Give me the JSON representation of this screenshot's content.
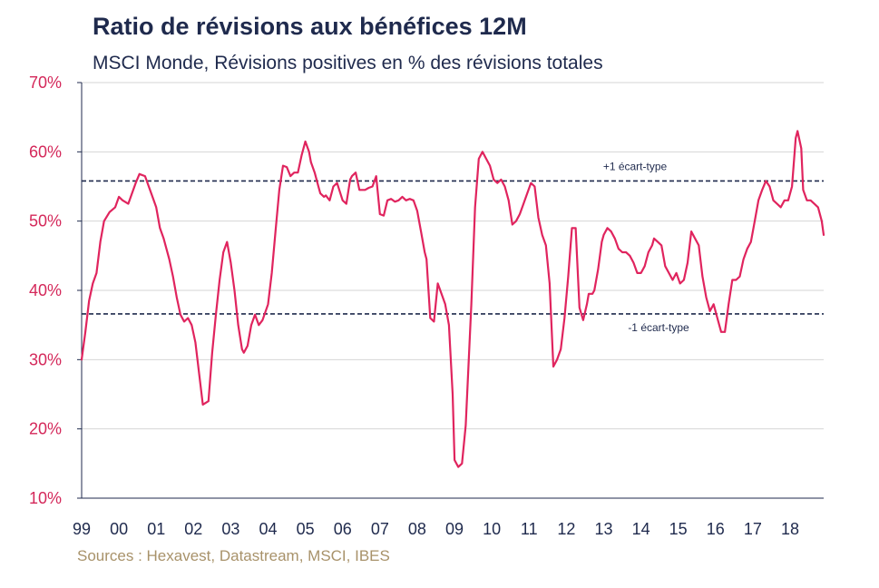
{
  "chart_data": {
    "type": "line",
    "title": "Ratio de révisions aux bénéfices 12M",
    "subtitle": "MSCI Monde, Révisions positives en % des révisions totales",
    "source": "Sources : Hexavest, Datastream, MSCI, IBES",
    "x_tick_labels": [
      "99",
      "00",
      "01",
      "02",
      "03",
      "04",
      "05",
      "06",
      "07",
      "08",
      "09",
      "10",
      "11",
      "12",
      "13",
      "14",
      "15",
      "16",
      "17",
      "18"
    ],
    "x_tick_years": [
      1999,
      2000,
      2001,
      2002,
      2003,
      2004,
      2005,
      2006,
      2007,
      2008,
      2009,
      2010,
      2011,
      2012,
      2013,
      2014,
      2015,
      2016,
      2017,
      2018
    ],
    "y_tick_labels": [
      "10%",
      "20%",
      "30%",
      "40%",
      "50%",
      "60%",
      "70%"
    ],
    "y_tick_values": [
      10,
      20,
      30,
      40,
      50,
      60,
      70
    ],
    "ylim": [
      10,
      70
    ],
    "xlim": [
      1999.0,
      2018.9
    ],
    "grid": "horizontal",
    "reference_lines": [
      {
        "label": "+1 écart-type",
        "value": 55.8,
        "style": "dashed"
      },
      {
        "label": "-1 écart-type",
        "value": 36.6,
        "style": "dashed"
      }
    ],
    "series": [
      {
        "color": "#e0245e",
        "x": [
          1999.0,
          1999.1,
          1999.2,
          1999.3,
          1999.4,
          1999.5,
          1999.6,
          1999.75,
          1999.9,
          2000.0,
          2000.1,
          2000.25,
          2000.35,
          2000.45,
          2000.55,
          2000.7,
          2000.8,
          2000.9,
          2001.0,
          2001.1,
          2001.2,
          2001.35,
          2001.45,
          2001.55,
          2001.65,
          2001.75,
          2001.85,
          2001.95,
          2002.05,
          2002.15,
          2002.25,
          2002.4,
          2002.5,
          2002.6,
          2002.7,
          2002.8,
          2002.9,
          2003.0,
          2003.1,
          2003.2,
          2003.3,
          2003.35,
          2003.45,
          2003.55,
          2003.65,
          2003.75,
          2003.85,
          2004.0,
          2004.1,
          2004.2,
          2004.3,
          2004.4,
          2004.5,
          2004.6,
          2004.7,
          2004.8,
          2004.9,
          2005.0,
          2005.1,
          2005.15,
          2005.25,
          2005.35,
          2005.4,
          2005.5,
          2005.55,
          2005.65,
          2005.75,
          2005.85,
          2006.0,
          2006.1,
          2006.2,
          2006.25,
          2006.35,
          2006.45,
          2006.55,
          2006.6,
          2006.7,
          2006.8,
          2006.9,
          2007.0,
          2007.1,
          2007.2,
          2007.3,
          2007.4,
          2007.5,
          2007.6,
          2007.7,
          2007.8,
          2007.9,
          2008.0,
          2008.1,
          2008.2,
          2008.25,
          2008.35,
          2008.45,
          2008.55,
          2008.65,
          2008.75,
          2008.85,
          2008.95,
          2009.0,
          2009.1,
          2009.2,
          2009.3,
          2009.45,
          2009.55,
          2009.65,
          2009.75,
          2009.85,
          2009.95,
          2010.05,
          2010.15,
          2010.25,
          2010.35,
          2010.45,
          2010.55,
          2010.65,
          2010.75,
          2010.85,
          2010.95,
          2011.05,
          2011.15,
          2011.25,
          2011.35,
          2011.45,
          2011.55,
          2011.65,
          2011.75,
          2011.85,
          2011.95,
          2012.05,
          2012.15,
          2012.25,
          2012.35,
          2012.45,
          2012.55,
          2012.6,
          2012.7,
          2012.75,
          2012.85,
          2012.95,
          2013.0,
          2013.1,
          2013.2,
          2013.3,
          2013.4,
          2013.5,
          2013.6,
          2013.7,
          2013.8,
          2013.9,
          2014.0,
          2014.1,
          2014.2,
          2014.3,
          2014.35,
          2014.45,
          2014.55,
          2014.65,
          2014.75,
          2014.85,
          2014.95,
          2015.05,
          2015.15,
          2015.25,
          2015.35,
          2015.45,
          2015.55,
          2015.65,
          2015.75,
          2015.85,
          2015.95,
          2016.05,
          2016.15,
          2016.25,
          2016.35,
          2016.45,
          2016.55,
          2016.65,
          2016.75,
          2016.85,
          2016.95,
          2017.05,
          2017.15,
          2017.25,
          2017.35,
          2017.45,
          2017.55,
          2017.65,
          2017.75,
          2017.85,
          2017.95,
          2018.05,
          2018.15,
          2018.2,
          2018.3,
          2018.35,
          2018.45,
          2018.55,
          2018.65,
          2018.75,
          2018.85,
          2018.9
        ],
        "values": [
          30,
          34,
          38.5,
          41,
          42.5,
          47,
          50,
          51.3,
          52,
          53.5,
          53,
          52.5,
          54,
          55.5,
          56.8,
          56.5,
          55,
          53.5,
          52,
          49,
          47.5,
          44.5,
          42,
          39,
          36.5,
          35.5,
          36,
          35,
          32.5,
          28,
          23.5,
          24,
          31,
          36.5,
          41.5,
          45.5,
          47,
          44,
          40,
          35,
          31.5,
          31,
          32,
          35,
          36.5,
          35,
          35.7,
          38,
          42.5,
          48.5,
          54.5,
          58,
          57.8,
          56.5,
          57,
          57,
          59.5,
          61.5,
          60,
          58.5,
          57,
          55,
          54,
          53.5,
          53.7,
          53,
          55,
          55.5,
          53,
          52.5,
          56,
          56.5,
          57,
          54.5,
          54.5,
          54.5,
          54.8,
          55,
          56.5,
          51,
          50.8,
          53,
          53.2,
          52.8,
          53,
          53.5,
          53,
          53.2,
          53,
          51.5,
          48.5,
          45.5,
          44.5,
          36,
          35.5,
          41,
          39.5,
          38,
          35,
          25,
          15.5,
          14.5,
          15,
          20.5,
          38,
          52,
          59,
          60,
          59,
          58,
          56,
          55.5,
          56,
          55,
          53,
          49.5,
          50,
          51,
          52.5,
          54,
          55.5,
          55,
          50.5,
          48,
          46.5,
          41,
          29,
          30,
          31.5,
          36,
          42,
          49,
          49,
          37.5,
          35.7,
          38,
          39.5,
          39.5,
          40,
          43,
          47,
          48,
          49,
          48.5,
          47.5,
          46,
          45.5,
          45.5,
          45,
          44,
          42.5,
          42.5,
          43.5,
          45.5,
          46.5,
          47.5,
          47,
          46.5,
          43.5,
          42.5,
          41.5,
          42.5,
          41,
          41.5,
          44,
          48.5,
          47.5,
          46.5,
          42,
          39,
          37,
          38,
          36,
          34,
          34,
          38,
          41.5,
          41.5,
          42,
          44.5,
          46,
          47,
          50,
          53,
          54.5,
          55.8,
          55,
          53,
          52.5,
          52,
          53,
          53,
          55,
          62,
          63,
          60.5,
          54.5,
          53,
          53,
          52.5,
          52,
          50,
          48
        ]
      }
    ]
  }
}
